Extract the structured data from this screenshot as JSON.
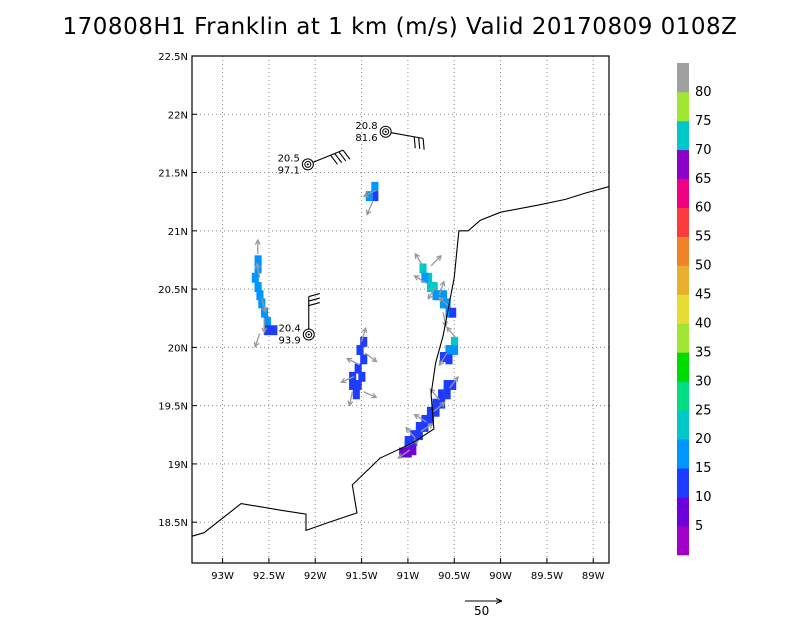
{
  "title": "170808H1 Franklin at 1 km (m/s) Valid 20170809  0108Z",
  "map": {
    "lon_range": [
      -93.33,
      -88.83
    ],
    "lat_range": [
      18.15,
      22.5
    ],
    "lat_ticks": [
      {
        "value": 22.5,
        "label": "22.5N"
      },
      {
        "value": 22.0,
        "label": "22N"
      },
      {
        "value": 21.5,
        "label": "21.5N"
      },
      {
        "value": 21.0,
        "label": "21N"
      },
      {
        "value": 20.5,
        "label": "20.5N"
      },
      {
        "value": 20.0,
        "label": "20N"
      },
      {
        "value": 19.5,
        "label": "19.5N"
      },
      {
        "value": 19.0,
        "label": "19N"
      },
      {
        "value": 18.5,
        "label": "18.5N"
      }
    ],
    "lon_ticks": [
      {
        "value": -93.0,
        "label": "93W"
      },
      {
        "value": -92.5,
        "label": "92.5W"
      },
      {
        "value": -92.0,
        "label": "92W"
      },
      {
        "value": -91.5,
        "label": "91.5W"
      },
      {
        "value": -91.0,
        "label": "91W"
      },
      {
        "value": -90.5,
        "label": "90.5W"
      },
      {
        "value": -90.0,
        "label": "90W"
      },
      {
        "value": -89.5,
        "label": "89.5W"
      },
      {
        "value": -89.0,
        "label": "89W"
      }
    ],
    "coastline": [
      [
        -93.33,
        18.38
      ],
      [
        -93.2,
        18.41
      ],
      [
        -92.8,
        18.66
      ],
      [
        -92.35,
        18.6
      ],
      [
        -92.1,
        18.57
      ],
      [
        -92.1,
        18.43
      ],
      [
        -91.85,
        18.5
      ],
      [
        -91.55,
        18.58
      ],
      [
        -91.6,
        18.82
      ],
      [
        -91.3,
        19.05
      ],
      [
        -90.95,
        19.18
      ],
      [
        -90.72,
        19.3
      ],
      [
        -90.75,
        19.6
      ],
      [
        -90.7,
        19.87
      ],
      [
        -90.62,
        20.1
      ],
      [
        -90.5,
        20.6
      ],
      [
        -90.45,
        21.0
      ],
      [
        -90.35,
        21.0
      ],
      [
        -90.22,
        21.09
      ],
      [
        -90.0,
        21.16
      ],
      [
        -89.6,
        21.22
      ],
      [
        -89.3,
        21.27
      ],
      [
        -89.1,
        21.32
      ],
      [
        -88.83,
        21.38
      ]
    ],
    "coastline_west_tip": [
      [
        -89.05,
        21.32
      ],
      [
        -88.95,
        21.38
      ],
      [
        -88.83,
        21.41
      ]
    ],
    "storms": [
      {
        "lon": -91.24,
        "lat": 21.85,
        "label_top": "20.8",
        "label_bottom": "81.6",
        "barb_dir": 100,
        "barbs": 3
      },
      {
        "lon": -92.08,
        "lat": 21.57,
        "label_top": "20.5",
        "label_bottom": "97.1",
        "barb_dir": 68,
        "barbs": 4
      },
      {
        "lon": -92.07,
        "lat": 20.11,
        "label_top": "20.4",
        "label_bottom": "93.9",
        "barb_dir": 0,
        "barbs": 3
      }
    ],
    "cells": [
      {
        "lon": -91.36,
        "lat": 21.38,
        "v": 16
      },
      {
        "lon": -91.36,
        "lat": 21.3,
        "v": 14
      },
      {
        "lon": -91.42,
        "lat": 21.3,
        "v": 16
      },
      {
        "lon": -92.62,
        "lat": 20.75,
        "v": 17
      },
      {
        "lon": -92.62,
        "lat": 20.68,
        "v": 15
      },
      {
        "lon": -92.65,
        "lat": 20.6,
        "v": 16
      },
      {
        "lon": -92.62,
        "lat": 20.52,
        "v": 18
      },
      {
        "lon": -92.6,
        "lat": 20.45,
        "v": 15
      },
      {
        "lon": -92.58,
        "lat": 20.38,
        "v": 16
      },
      {
        "lon": -92.55,
        "lat": 20.3,
        "v": 17
      },
      {
        "lon": -92.52,
        "lat": 20.22,
        "v": 16
      },
      {
        "lon": -92.52,
        "lat": 20.15,
        "v": 13
      },
      {
        "lon": -92.45,
        "lat": 20.15,
        "v": 14
      },
      {
        "lon": -90.84,
        "lat": 20.68,
        "v": 22
      },
      {
        "lon": -90.78,
        "lat": 20.6,
        "v": 23
      },
      {
        "lon": -90.72,
        "lat": 20.52,
        "v": 22
      },
      {
        "lon": -90.66,
        "lat": 20.45,
        "v": 22
      },
      {
        "lon": -90.62,
        "lat": 20.38,
        "v": 19
      },
      {
        "lon": -90.56,
        "lat": 20.3,
        "v": 16
      },
      {
        "lon": -90.82,
        "lat": 20.6,
        "v": 18
      },
      {
        "lon": -90.76,
        "lat": 20.52,
        "v": 20
      },
      {
        "lon": -90.7,
        "lat": 20.45,
        "v": 18
      },
      {
        "lon": -90.62,
        "lat": 20.45,
        "v": 16
      },
      {
        "lon": -90.58,
        "lat": 20.38,
        "v": 15
      },
      {
        "lon": -90.52,
        "lat": 20.3,
        "v": 14
      },
      {
        "lon": -90.5,
        "lat": 20.05,
        "v": 20
      },
      {
        "lon": -90.5,
        "lat": 19.98,
        "v": 19
      },
      {
        "lon": -90.56,
        "lat": 19.98,
        "v": 16
      },
      {
        "lon": -90.62,
        "lat": 19.92,
        "v": 14
      },
      {
        "lon": -90.56,
        "lat": 19.9,
        "v": 13
      },
      {
        "lon": -91.48,
        "lat": 20.05,
        "v": 11
      },
      {
        "lon": -91.52,
        "lat": 19.98,
        "v": 12
      },
      {
        "lon": -91.48,
        "lat": 19.9,
        "v": 13
      },
      {
        "lon": -91.54,
        "lat": 19.82,
        "v": 11
      },
      {
        "lon": -91.6,
        "lat": 19.75,
        "v": 12
      },
      {
        "lon": -91.6,
        "lat": 19.68,
        "v": 11
      },
      {
        "lon": -91.54,
        "lat": 19.68,
        "v": 12
      },
      {
        "lon": -91.56,
        "lat": 19.6,
        "v": 11
      },
      {
        "lon": -91.5,
        "lat": 19.75,
        "v": 13
      },
      {
        "lon": -90.52,
        "lat": 19.68,
        "v": 12
      },
      {
        "lon": -90.58,
        "lat": 19.6,
        "v": 13
      },
      {
        "lon": -90.64,
        "lat": 19.52,
        "v": 12
      },
      {
        "lon": -90.7,
        "lat": 19.45,
        "v": 13
      },
      {
        "lon": -90.76,
        "lat": 19.38,
        "v": 12
      },
      {
        "lon": -90.82,
        "lat": 19.32,
        "v": 13
      },
      {
        "lon": -90.88,
        "lat": 19.25,
        "v": 12
      },
      {
        "lon": -90.94,
        "lat": 19.2,
        "v": 13
      },
      {
        "lon": -91.0,
        "lat": 19.15,
        "v": 12
      },
      {
        "lon": -90.64,
        "lat": 19.6,
        "v": 12
      },
      {
        "lon": -90.7,
        "lat": 19.52,
        "v": 13
      },
      {
        "lon": -90.76,
        "lat": 19.45,
        "v": 12
      },
      {
        "lon": -90.82,
        "lat": 19.38,
        "v": 12
      },
      {
        "lon": -90.88,
        "lat": 19.32,
        "v": 13
      },
      {
        "lon": -90.94,
        "lat": 19.25,
        "v": 12
      },
      {
        "lon": -91.0,
        "lat": 19.2,
        "v": 13
      },
      {
        "lon": -90.58,
        "lat": 19.68,
        "v": 13
      },
      {
        "lon": -91.06,
        "lat": 19.1,
        "v": 8
      },
      {
        "lon": -91.0,
        "lat": 19.1,
        "v": 7
      },
      {
        "lon": -90.95,
        "lat": 19.12,
        "v": 9
      }
    ],
    "arrows": [
      {
        "lon": -91.34,
        "lat": 21.35,
        "u": -1.0,
        "v": -0.5
      },
      {
        "lon": -91.38,
        "lat": 21.25,
        "u": -0.4,
        "v": -0.9
      },
      {
        "lon": -92.62,
        "lat": 20.8,
        "u": 0,
        "v": 1
      },
      {
        "lon": -92.6,
        "lat": 20.6,
        "u": -0.2,
        "v": 1
      },
      {
        "lon": -92.58,
        "lat": 20.42,
        "u": 0.3,
        "v": -1
      },
      {
        "lon": -92.55,
        "lat": 20.25,
        "u": 0,
        "v": -1
      },
      {
        "lon": -92.6,
        "lat": 20.12,
        "u": -0.3,
        "v": -0.9
      },
      {
        "lon": -90.84,
        "lat": 20.7,
        "u": -0.5,
        "v": 0.8
      },
      {
        "lon": -90.75,
        "lat": 20.7,
        "u": 0.7,
        "v": 0.7
      },
      {
        "lon": -90.8,
        "lat": 20.55,
        "u": -0.8,
        "v": 0.5
      },
      {
        "lon": -90.66,
        "lat": 20.45,
        "u": 0.3,
        "v": 0.9
      },
      {
        "lon": -90.7,
        "lat": 20.52,
        "u": -0.5,
        "v": -0.8
      },
      {
        "lon": -90.55,
        "lat": 20.35,
        "u": -0.7,
        "v": 0.6
      },
      {
        "lon": -90.62,
        "lat": 20.3,
        "u": 0.2,
        "v": -1
      },
      {
        "lon": -90.48,
        "lat": 20.08,
        "u": -0.6,
        "v": 0.7
      },
      {
        "lon": -90.58,
        "lat": 19.95,
        "u": -0.5,
        "v": -0.8
      },
      {
        "lon": -91.5,
        "lat": 20.05,
        "u": 0.3,
        "v": 1
      },
      {
        "lon": -91.46,
        "lat": 19.95,
        "u": 0.8,
        "v": -0.6
      },
      {
        "lon": -91.52,
        "lat": 19.85,
        "u": -0.8,
        "v": 0.4
      },
      {
        "lon": -91.58,
        "lat": 19.75,
        "u": -0.9,
        "v": -0.4
      },
      {
        "lon": -91.48,
        "lat": 19.62,
        "u": 0.9,
        "v": -0.4
      },
      {
        "lon": -91.6,
        "lat": 19.62,
        "u": -0.2,
        "v": -1
      },
      {
        "lon": -90.55,
        "lat": 19.65,
        "u": 0.6,
        "v": 0.8
      },
      {
        "lon": -90.66,
        "lat": 19.55,
        "u": -0.6,
        "v": 0.7
      },
      {
        "lon": -90.72,
        "lat": 19.45,
        "u": 0.7,
        "v": 0.6
      },
      {
        "lon": -90.8,
        "lat": 19.36,
        "u": -0.8,
        "v": 0.5
      },
      {
        "lon": -90.86,
        "lat": 19.28,
        "u": 0.8,
        "v": 0.5
      },
      {
        "lon": -90.92,
        "lat": 19.22,
        "u": -0.6,
        "v": 0.7
      },
      {
        "lon": -91.02,
        "lat": 19.15,
        "u": 0.8,
        "v": 0.4
      },
      {
        "lon": -90.98,
        "lat": 19.12,
        "u": -0.7,
        "v": -0.5
      }
    ]
  },
  "colorbar": {
    "ticks": [
      "5",
      "10",
      "15",
      "20",
      "25",
      "30",
      "35",
      "40",
      "45",
      "50",
      "55",
      "60",
      "65",
      "70",
      "75",
      "80"
    ],
    "colors": [
      "#a000c8",
      "#6e00dc",
      "#1e3cff",
      "#0096ff",
      "#00c8c8",
      "#00dc82",
      "#00dc00",
      "#a0e632",
      "#e6dc32",
      "#e6af2d",
      "#f08228",
      "#fa3c3c",
      "#f00082",
      "#8c00c8",
      "#00c8c8",
      "#a0e632",
      "#a0a0a0"
    ]
  },
  "reference_vector": {
    "label": "50"
  }
}
